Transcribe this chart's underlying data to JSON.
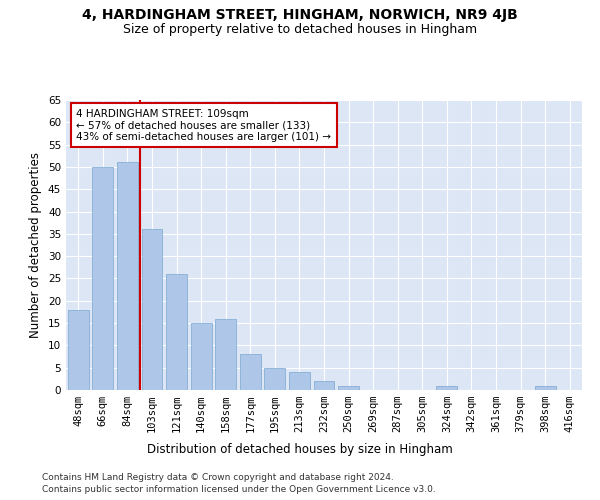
{
  "title": "4, HARDINGHAM STREET, HINGHAM, NORWICH, NR9 4JB",
  "subtitle": "Size of property relative to detached houses in Hingham",
  "xlabel": "Distribution of detached houses by size in Hingham",
  "ylabel": "Number of detached properties",
  "bar_labels": [
    "48sqm",
    "66sqm",
    "84sqm",
    "103sqm",
    "121sqm",
    "140sqm",
    "158sqm",
    "177sqm",
    "195sqm",
    "213sqm",
    "232sqm",
    "250sqm",
    "269sqm",
    "287sqm",
    "305sqm",
    "324sqm",
    "342sqm",
    "361sqm",
    "379sqm",
    "398sqm",
    "416sqm"
  ],
  "bar_values": [
    18,
    50,
    51,
    36,
    26,
    15,
    16,
    8,
    5,
    4,
    2,
    1,
    0,
    0,
    0,
    1,
    0,
    0,
    0,
    1,
    0
  ],
  "bar_color": "#aec6e8",
  "bar_edgecolor": "#7aa8d0",
  "property_line_x": 2.5,
  "annotation_text": "4 HARDINGHAM STREET: 109sqm\n← 57% of detached houses are smaller (133)\n43% of semi-detached houses are larger (101) →",
  "annotation_box_color": "#ffffff",
  "annotation_box_edgecolor": "#cc0000",
  "vline_color": "#cc0000",
  "ylim": [
    0,
    65
  ],
  "yticks": [
    0,
    5,
    10,
    15,
    20,
    25,
    30,
    35,
    40,
    45,
    50,
    55,
    60,
    65
  ],
  "background_color": "#dce6f5",
  "footer_line1": "Contains HM Land Registry data © Crown copyright and database right 2024.",
  "footer_line2": "Contains public sector information licensed under the Open Government Licence v3.0.",
  "title_fontsize": 10,
  "subtitle_fontsize": 9,
  "xlabel_fontsize": 8.5,
  "ylabel_fontsize": 8.5,
  "tick_fontsize": 7.5,
  "annotation_fontsize": 7.5,
  "footer_fontsize": 6.5
}
